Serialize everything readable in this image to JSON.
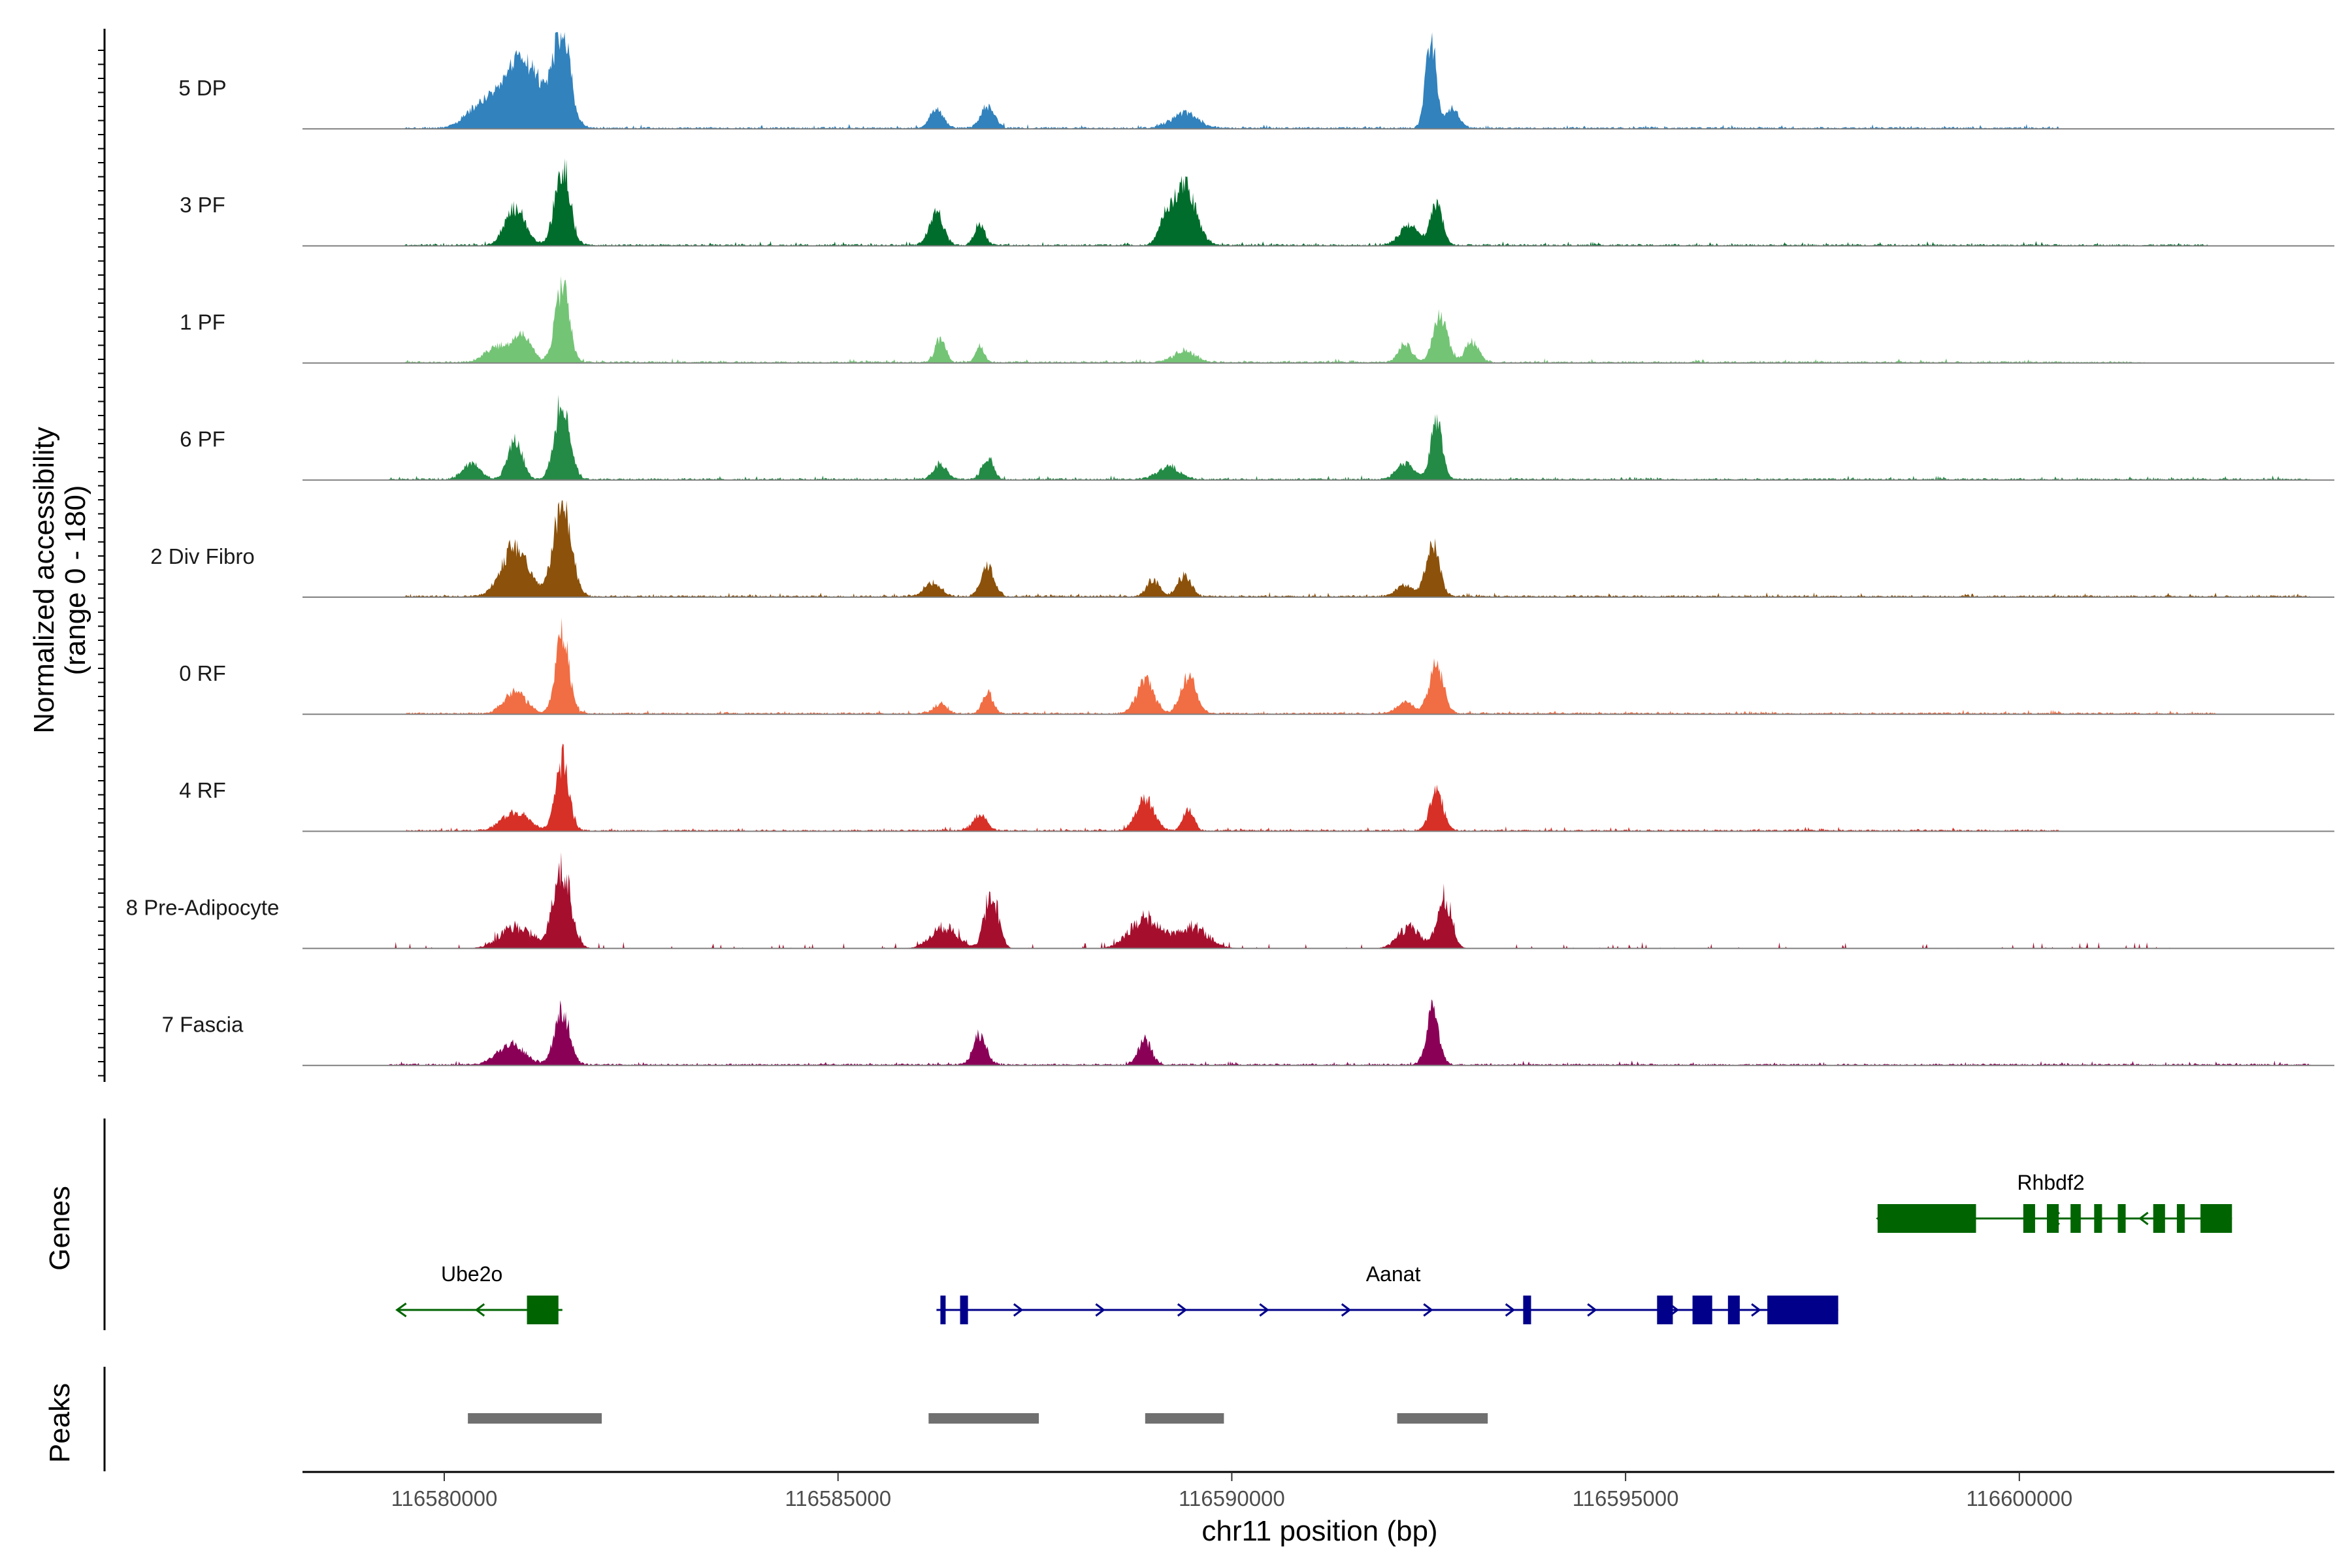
{
  "chart_data": {
    "type": "area",
    "title": "",
    "xlabel": "chr11 position (bp)",
    "ylabel": "Normalized accessibility\n(range 0 - 180)",
    "ylim": [
      0,
      180
    ],
    "xlim": [
      116578200,
      116604000
    ],
    "x_ticks": [
      116580000,
      116585000,
      116590000,
      116595000,
      116600000
    ],
    "x_tick_labels": [
      "116580000",
      "116585000",
      "116590000",
      "116595000",
      "116600000"
    ],
    "panel_labels": {
      "genes": "Genes",
      "peaks": "Peaks"
    },
    "track_range": [
      116579300,
      116603700
    ],
    "tracks": [
      {
        "name": "5 DP",
        "color": "#3182bd",
        "peaks": [
          [
            116580500,
            350,
            45,
            0.45
          ],
          [
            116580850,
            300,
            55,
            0.3
          ],
          [
            116581100,
            400,
            95,
            0.45
          ],
          [
            116581500,
            180,
            170,
            0.5
          ],
          [
            116586250,
            150,
            35,
            0.45
          ],
          [
            116586900,
            160,
            40,
            0.45
          ],
          [
            116589400,
            300,
            28,
            0.5
          ],
          [
            116592530,
            120,
            160,
            0.45
          ],
          [
            116592800,
            150,
            35,
            0.45
          ]
        ],
        "noise": [
          116579500,
          116600500
        ]
      },
      {
        "name": "3 PF",
        "color": "#006d2c",
        "peaks": [
          [
            116580900,
            220,
            70,
            0.45
          ],
          [
            116581500,
            170,
            150,
            0.5
          ],
          [
            116586250,
            160,
            60,
            0.45
          ],
          [
            116586800,
            120,
            40,
            0.45
          ],
          [
            116589400,
            250,
            110,
            0.5
          ],
          [
            116589150,
            150,
            40,
            0.45
          ],
          [
            116592250,
            200,
            40,
            0.45
          ],
          [
            116592600,
            140,
            75,
            0.45
          ]
        ],
        "noise": [
          116579500,
          116602400
        ]
      },
      {
        "name": "1 PF",
        "color": "#74c476",
        "peaks": [
          [
            116580700,
            300,
            30,
            0.45
          ],
          [
            116581000,
            200,
            45,
            0.45
          ],
          [
            116581500,
            160,
            140,
            0.5
          ],
          [
            116586300,
            120,
            45,
            0.45
          ],
          [
            116586800,
            100,
            30,
            0.45
          ],
          [
            116589400,
            250,
            20,
            0.5
          ],
          [
            116592200,
            150,
            35,
            0.45
          ],
          [
            116592650,
            160,
            85,
            0.45
          ],
          [
            116593050,
            150,
            40,
            0.45
          ]
        ],
        "noise": [
          116579500,
          116601600
        ]
      },
      {
        "name": "6 PF",
        "color": "#238b45",
        "peaks": [
          [
            116580350,
            200,
            30,
            0.45
          ],
          [
            116580900,
            160,
            75,
            0.45
          ],
          [
            116581500,
            170,
            150,
            0.5
          ],
          [
            116586300,
            150,
            30,
            0.45
          ],
          [
            116586900,
            130,
            40,
            0.45
          ],
          [
            116589200,
            250,
            25,
            0.5
          ],
          [
            116592600,
            130,
            110,
            0.45
          ],
          [
            116592200,
            200,
            30,
            0.45
          ]
        ],
        "noise": [
          116579300,
          116603700
        ]
      },
      {
        "name": "2 Div Fibro",
        "color": "#8c510a",
        "peaks": [
          [
            116580900,
            300,
            95,
            0.45
          ],
          [
            116581500,
            200,
            170,
            0.5
          ],
          [
            116586200,
            180,
            25,
            0.45
          ],
          [
            116586900,
            150,
            55,
            0.45
          ],
          [
            116589000,
            150,
            30,
            0.45
          ],
          [
            116589400,
            150,
            40,
            0.45
          ],
          [
            116592550,
            150,
            100,
            0.45
          ],
          [
            116592200,
            200,
            20,
            0.45
          ]
        ],
        "noise": [
          116579500,
          116603700
        ]
      },
      {
        "name": "0 RF",
        "color": "#f16d43",
        "peaks": [
          [
            116580900,
            250,
            40,
            0.45
          ],
          [
            116581500,
            150,
            145,
            0.5
          ],
          [
            116586300,
            150,
            18,
            0.45
          ],
          [
            116586900,
            120,
            40,
            0.45
          ],
          [
            116588900,
            200,
            60,
            0.45
          ],
          [
            116589450,
            170,
            70,
            0.45
          ],
          [
            116592600,
            160,
            90,
            0.45
          ],
          [
            116592200,
            200,
            20,
            0.45
          ]
        ],
        "noise": [
          116579500,
          116602500
        ]
      },
      {
        "name": "4 RF",
        "color": "#d73027",
        "peaks": [
          [
            116580900,
            300,
            35,
            0.45
          ],
          [
            116581500,
            150,
            130,
            0.5
          ],
          [
            116586800,
            150,
            30,
            0.45
          ],
          [
            116588900,
            200,
            60,
            0.45
          ],
          [
            116589450,
            120,
            40,
            0.45
          ],
          [
            116592600,
            150,
            75,
            0.45
          ]
        ],
        "noise": [
          116579500,
          116600500
        ]
      },
      {
        "name": "8 Pre-Adipocyte",
        "color": "#a50f2d",
        "peaks": [
          [
            116580900,
            350,
            40,
            0.6
          ],
          [
            116581500,
            200,
            145,
            0.6
          ],
          [
            116586350,
            300,
            40,
            0.6
          ],
          [
            116586950,
            150,
            110,
            0.6
          ],
          [
            116588900,
            350,
            55,
            0.6
          ],
          [
            116589500,
            350,
            40,
            0.6
          ],
          [
            116592250,
            250,
            40,
            0.6
          ],
          [
            116592700,
            160,
            100,
            0.6
          ]
        ],
        "noise": [
          116579300,
          116602500
        ],
        "sparse": true
      },
      {
        "name": "7 Fascia",
        "color": "#8b0057",
        "peaks": [
          [
            116580850,
            300,
            40,
            0.45
          ],
          [
            116581500,
            170,
            100,
            0.5
          ],
          [
            116586800,
            150,
            55,
            0.45
          ],
          [
            116588900,
            150,
            45,
            0.45
          ],
          [
            116592550,
            140,
            100,
            0.45
          ]
        ],
        "noise": [
          116579300,
          116603700
        ]
      }
    ],
    "genes": [
      {
        "name": "Ube2o",
        "strand": "-",
        "color": "#006400",
        "start": 116579400,
        "end": 116581500,
        "row": 1,
        "exons": [
          [
            116581050,
            116581450
          ]
        ],
        "label_x": 116580350
      },
      {
        "name": "Aanat",
        "strand": "+",
        "color": "#00008b",
        "start": 116586250,
        "end": 116597700,
        "row": 1,
        "exons": [
          [
            116586300,
            116586350
          ],
          [
            116586550,
            116586650
          ],
          [
            116593700,
            116593800
          ],
          [
            116595400,
            116595600
          ],
          [
            116595850,
            116596100
          ],
          [
            116596300,
            116596450
          ],
          [
            116596800,
            116597700
          ]
        ],
        "label_x": 116592050
      },
      {
        "name": "Rhbdf2",
        "strand": "-",
        "color": "#006400",
        "start": 116598200,
        "end": 116602700,
        "row": 0,
        "exons": [
          [
            116598200,
            116599450
          ],
          [
            116600050,
            116600200
          ],
          [
            116600350,
            116600500
          ],
          [
            116600650,
            116600780
          ],
          [
            116600950,
            116601050
          ],
          [
            116601250,
            116601350
          ],
          [
            116601700,
            116601850
          ],
          [
            116602000,
            116602100
          ],
          [
            116602300,
            116602700
          ]
        ],
        "label_x": 116600400
      }
    ],
    "peak_regions": [
      [
        116580300,
        116582000
      ],
      [
        116586150,
        116587550
      ],
      [
        116588900,
        116589900
      ],
      [
        116592100,
        116593250
      ]
    ]
  }
}
